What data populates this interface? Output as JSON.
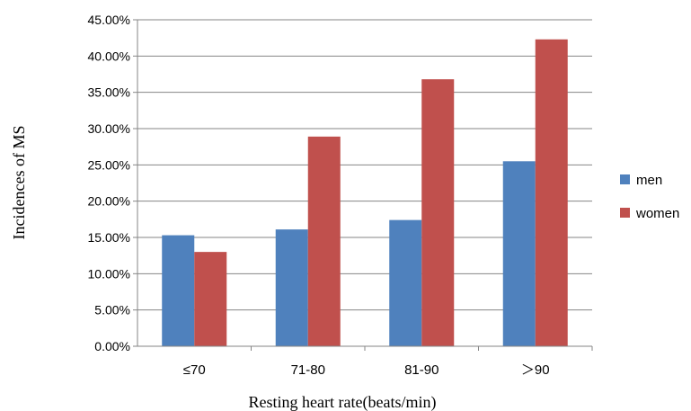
{
  "chart_data": {
    "type": "bar",
    "categories": [
      "≤70",
      "71-80",
      "81-90",
      "＞90"
    ],
    "series": [
      {
        "name": "men",
        "color": "#4f81bd",
        "values": [
          15.3,
          16.1,
          17.4,
          25.5
        ]
      },
      {
        "name": "women",
        "color": "#c0504d",
        "values": [
          13.0,
          28.9,
          36.8,
          42.3
        ]
      }
    ],
    "xlabel": "Resting heart rate(beats/min)",
    "ylabel": "Incidences of MS",
    "ylim": [
      0,
      45
    ],
    "yticks": [
      "0.00%",
      "5.00%",
      "10.00%",
      "15.00%",
      "20.00%",
      "25.00%",
      "30.00%",
      "35.00%",
      "40.00%",
      "45.00%"
    ],
    "grid": true,
    "legend": "right"
  }
}
